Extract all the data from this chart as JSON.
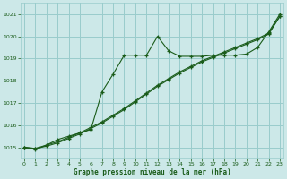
{
  "bg_color": "#cce8e8",
  "grid_color": "#99cccc",
  "line_color": "#1a5c1a",
  "xlabel": "Graphe pression niveau de la mer (hPa)",
  "ylim": [
    1014.5,
    1021.5
  ],
  "xlim": [
    -0.3,
    23.3
  ],
  "yticks": [
    1015,
    1016,
    1017,
    1018,
    1019,
    1020,
    1021
  ],
  "xticks": [
    0,
    1,
    2,
    3,
    4,
    5,
    6,
    7,
    8,
    9,
    10,
    11,
    12,
    13,
    14,
    15,
    16,
    17,
    18,
    19,
    20,
    21,
    22,
    23
  ],
  "series1_x": [
    0,
    1,
    2,
    3,
    4,
    5,
    6,
    7,
    8,
    9,
    10,
    11,
    12,
    13,
    14,
    15,
    16,
    17,
    18,
    19,
    20,
    21,
    22,
    23
  ],
  "series1_y": [
    1015.0,
    1014.9,
    1015.1,
    1015.35,
    1015.5,
    1015.65,
    1015.8,
    1017.5,
    1018.3,
    1019.15,
    1019.15,
    1019.15,
    1020.0,
    1019.35,
    1019.1,
    1019.1,
    1019.1,
    1019.15,
    1019.15,
    1019.15,
    1019.2,
    1019.5,
    1020.2,
    1021.0
  ],
  "series2_x": [
    0,
    1,
    2,
    3,
    4,
    5,
    6,
    7,
    8,
    9,
    10,
    11,
    12,
    13,
    14,
    15,
    16,
    17,
    18,
    19,
    20,
    21,
    22,
    23
  ],
  "series2_y": [
    1015.0,
    1014.95,
    1015.05,
    1015.2,
    1015.4,
    1015.6,
    1015.85,
    1016.1,
    1016.4,
    1016.7,
    1017.05,
    1017.4,
    1017.75,
    1018.05,
    1018.35,
    1018.6,
    1018.85,
    1019.05,
    1019.25,
    1019.45,
    1019.65,
    1019.85,
    1020.1,
    1020.9
  ],
  "series3_x": [
    0,
    1,
    2,
    3,
    4,
    5,
    6,
    7,
    8,
    9,
    10,
    11,
    12,
    13,
    14,
    15,
    16,
    17,
    18,
    19,
    20,
    21,
    22,
    23
  ],
  "series3_y": [
    1015.0,
    1014.95,
    1015.1,
    1015.25,
    1015.45,
    1015.65,
    1015.9,
    1016.15,
    1016.45,
    1016.75,
    1017.1,
    1017.45,
    1017.8,
    1018.1,
    1018.4,
    1018.65,
    1018.9,
    1019.1,
    1019.3,
    1019.5,
    1019.7,
    1019.9,
    1020.15,
    1020.9
  ]
}
